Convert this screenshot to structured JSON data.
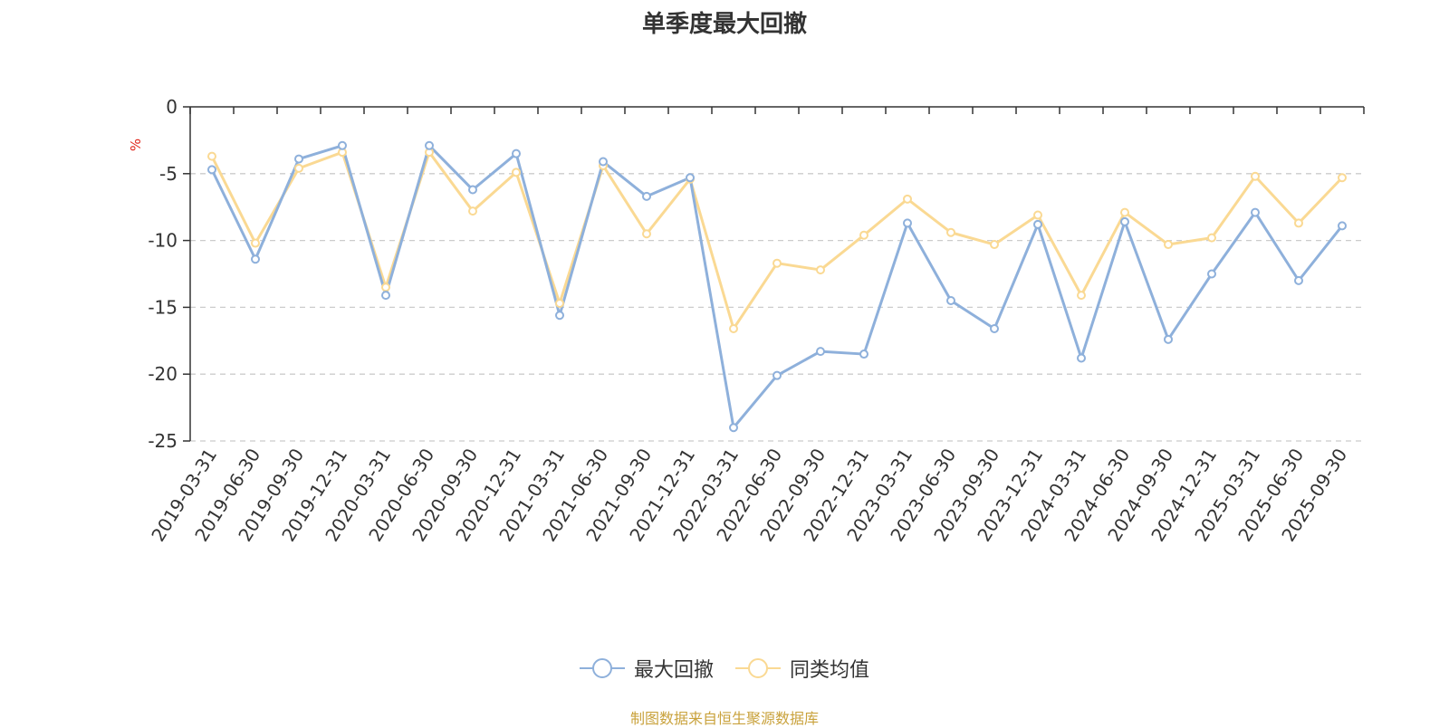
{
  "title": "单季度最大回撤",
  "source": "制图数据来自恒生聚源数据库",
  "colors": {
    "series1": "#8eb0db",
    "series2": "#fad993",
    "source": "#c9a23c",
    "ylabel": "#e0251a",
    "grid": "#cccccc",
    "axis": "#333333"
  },
  "chart_data": {
    "type": "line",
    "title": "单季度最大回撤",
    "ylabel": "%",
    "ylim": [
      -25,
      0
    ],
    "yticks": [
      0,
      -5,
      -10,
      -15,
      -20,
      -25
    ],
    "grid": "horizontal dashed",
    "legend_position": "bottom",
    "categories": [
      "2019-03-31",
      "2019-06-30",
      "2019-09-30",
      "2019-12-31",
      "2020-03-31",
      "2020-06-30",
      "2020-09-30",
      "2020-12-31",
      "2021-03-31",
      "2021-06-30",
      "2021-09-30",
      "2021-12-31",
      "2022-03-31",
      "2022-06-30",
      "2022-09-30",
      "2022-12-31",
      "2023-03-31",
      "2023-06-30",
      "2023-09-30",
      "2023-12-31",
      "2024-03-31",
      "2024-06-30",
      "2024-09-30",
      "2024-12-31",
      "2025-03-31",
      "2025-06-30",
      "2025-09-30"
    ],
    "series": [
      {
        "name": "最大回撤",
        "color": "#8eb0db",
        "values": [
          -4.7,
          -11.4,
          -3.9,
          -2.9,
          -14.1,
          -2.9,
          -6.2,
          -3.5,
          -15.6,
          -4.1,
          -6.7,
          -5.3,
          -24.0,
          -20.1,
          -18.3,
          -18.5,
          -8.7,
          -14.5,
          -16.6,
          -8.8,
          -18.8,
          -8.6,
          -17.4,
          -12.5,
          -7.9,
          -13.0,
          -8.9
        ]
      },
      {
        "name": "同类均值",
        "color": "#fad993",
        "values": [
          -3.7,
          -10.2,
          -4.6,
          -3.4,
          -13.5,
          -3.4,
          -7.8,
          -4.9,
          -14.7,
          -4.4,
          -9.5,
          -5.4,
          -16.6,
          -11.7,
          -12.2,
          -9.6,
          -6.9,
          -9.4,
          -10.3,
          -8.1,
          -14.1,
          -7.9,
          -10.3,
          -9.8,
          -5.2,
          -8.7,
          -5.3
        ]
      }
    ]
  }
}
